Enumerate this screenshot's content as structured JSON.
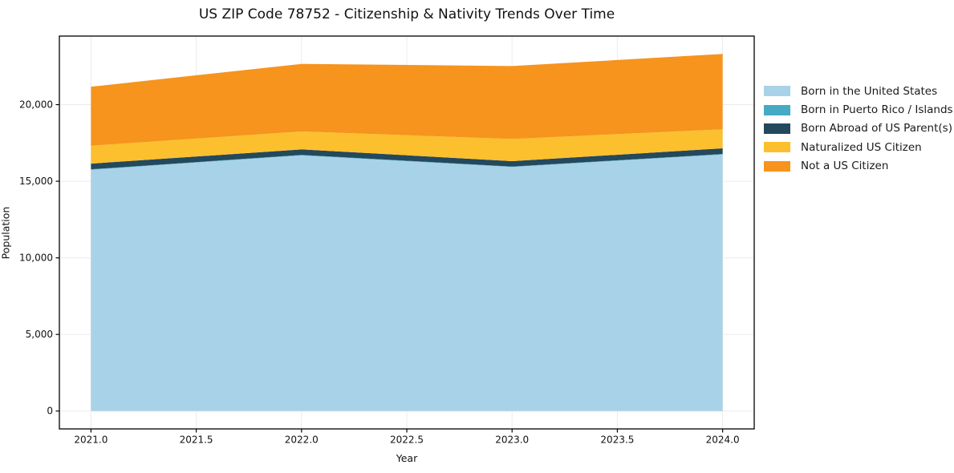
{
  "figure": {
    "title": "US ZIP Code 78752 - Citizenship & Nativity Trends Over Time",
    "xlabel": "Year",
    "ylabel": "Population"
  },
  "colors": {
    "background": "#ffffff",
    "grid": "#ebebeb",
    "spine": "#000000",
    "tick_text": "#111111"
  },
  "chart_data": {
    "type": "area",
    "stacked": true,
    "title": "US ZIP Code 78752 - Citizenship & Nativity Trends Over Time",
    "xlabel": "Year",
    "ylabel": "Population",
    "grid": true,
    "legend_position": "center right outside",
    "x": [
      2021,
      2022,
      2023,
      2024
    ],
    "series": [
      {
        "name": "Born in the United States",
        "color": "#A8D2E8",
        "values": [
          15750,
          16690,
          15930,
          16750
        ]
      },
      {
        "name": "Born in Puerto Rico / Islands",
        "color": "#45AAC4",
        "values": [
          30,
          30,
          30,
          30
        ]
      },
      {
        "name": "Born Abroad of US Parent(s)",
        "color": "#24485C",
        "values": [
          370,
          360,
          350,
          370
        ]
      },
      {
        "name": "Naturalized US Citizen",
        "color": "#FCC02E",
        "values": [
          1170,
          1170,
          1450,
          1240
        ]
      },
      {
        "name": "Not a US Citizen",
        "color": "#F6941E",
        "values": [
          3850,
          4410,
          4760,
          4920
        ]
      }
    ],
    "totals": [
      21170,
      22660,
      22520,
      23310
    ],
    "xlim": [
      2020.85,
      2024.15
    ],
    "ylim": [
      -1166,
      24476
    ],
    "xticks": {
      "values": [
        2021.0,
        2021.5,
        2022.0,
        2022.5,
        2023.0,
        2023.5,
        2024.0
      ],
      "labels": [
        "2021.0",
        "2021.5",
        "2022.0",
        "2022.5",
        "2023.0",
        "2023.5",
        "2024.0"
      ]
    },
    "yticks": {
      "values": [
        0,
        5000,
        10000,
        15000,
        20000
      ],
      "labels": [
        "0",
        "5,000",
        "10,000",
        "15,000",
        "20,000"
      ]
    }
  }
}
